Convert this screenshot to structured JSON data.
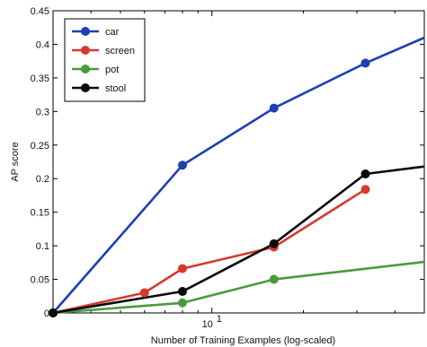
{
  "chart_data": {
    "type": "line",
    "xscale": "log",
    "xlabel": "Number of Training Examples (log-scaled)",
    "ylabel": "AP score",
    "ylim": [
      0,
      0.45
    ],
    "xlim": [
      3,
      50
    ],
    "yticks": [
      "0",
      "0.05",
      "0.1",
      "0.15",
      "0.2",
      "0.25",
      "0.3",
      "0.35",
      "0.4",
      "0.45"
    ],
    "yticks_values": [
      0,
      0.05,
      0.1,
      0.15,
      0.2,
      0.25,
      0.3,
      0.35,
      0.4,
      0.45
    ],
    "xticks": [
      {
        "value": 10,
        "base": "10",
        "exp": "1"
      }
    ],
    "grid": false,
    "legend": "top-left",
    "series": [
      {
        "name": "car",
        "color": "#1f3fb5",
        "x": [
          3,
          8,
          16,
          32,
          50
        ],
        "y": [
          0,
          0.22,
          0.305,
          0.372,
          0.41
        ]
      },
      {
        "name": "screen",
        "color": "#d63a2f",
        "x": [
          3,
          6,
          8,
          16,
          32
        ],
        "y": [
          0,
          0.03,
          0.066,
          0.098,
          0.184
        ]
      },
      {
        "name": "pot",
        "color": "#4a9a3c",
        "x": [
          3,
          8,
          16,
          50
        ],
        "y": [
          0,
          0.015,
          0.05,
          0.076
        ]
      },
      {
        "name": "stool",
        "color": "#0a0a0a",
        "x": [
          3,
          8,
          16,
          32,
          50
        ],
        "y": [
          0,
          0.032,
          0.103,
          0.207,
          0.218
        ]
      }
    ]
  }
}
